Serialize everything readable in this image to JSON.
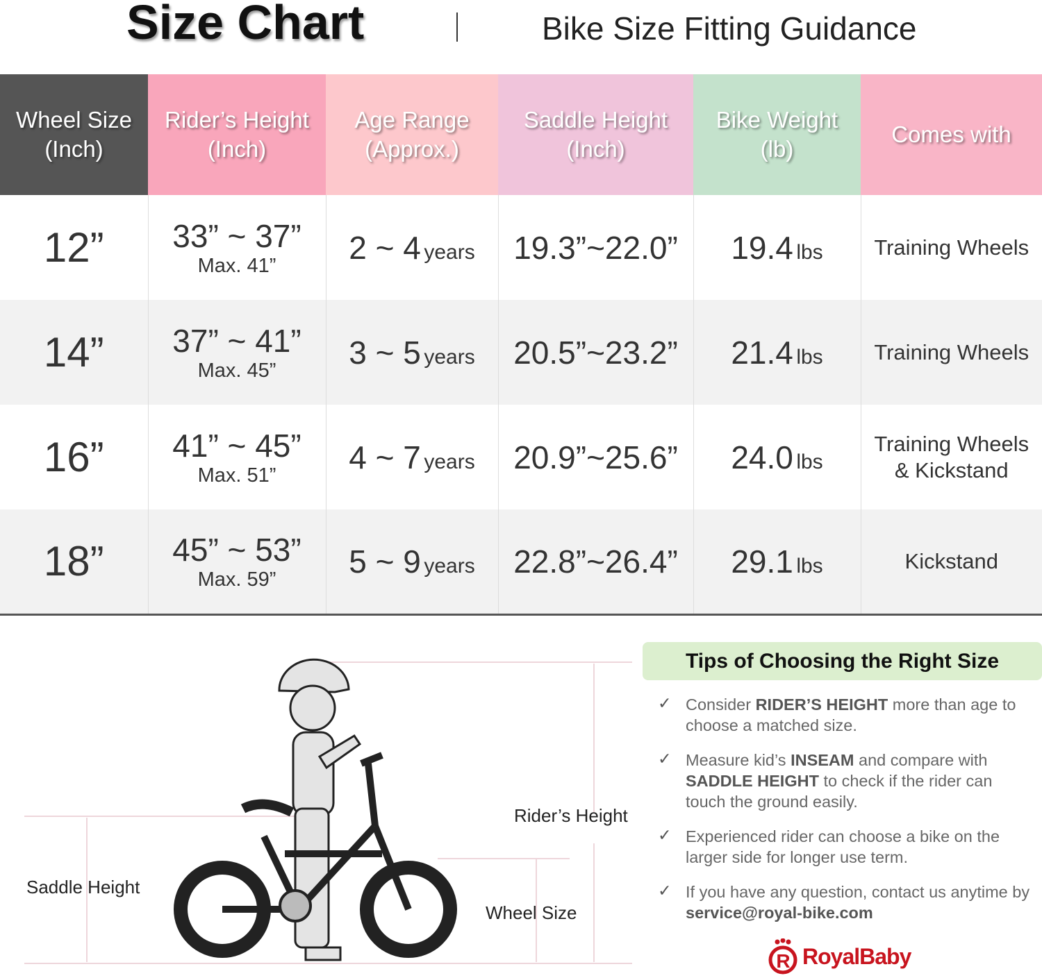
{
  "header": {
    "title": "Size Chart",
    "subtitle": "Bike Size Fitting Guidance"
  },
  "colors": {
    "wheel_header": "#555555",
    "rider_header": "#f9a6bb",
    "age_header": "#fdc8cc",
    "saddle_header": "#f0c4db",
    "weight_header": "#c4e2cc",
    "comes_header": "#f9b5c7",
    "brand": "#c8141e"
  },
  "table": {
    "columns": [
      {
        "line1": "Wheel Size",
        "line2": "(Inch)"
      },
      {
        "line1": "Rider’s Height",
        "line2": "(Inch)"
      },
      {
        "line1": "Age Range",
        "line2": "(Approx.)"
      },
      {
        "line1": "Saddle Height",
        "line2": "(Inch)"
      },
      {
        "line1": "Bike Weight",
        "line2": "(lb)"
      },
      {
        "line1": "Comes with",
        "line2": ""
      }
    ],
    "rows": [
      {
        "wheel": "12”",
        "height": "33” ~ 37”",
        "max": "Max. 41”",
        "age": "2 ~ 4",
        "age_unit": "years",
        "saddle": "19.3”~22.0”",
        "weight": "19.4",
        "weight_unit": "lbs",
        "comes1": "Training Wheels",
        "comes2": ""
      },
      {
        "wheel": "14”",
        "height": "37” ~ 41”",
        "max": "Max. 45”",
        "age": "3 ~ 5",
        "age_unit": "years",
        "saddle": "20.5”~23.2”",
        "weight": "21.4",
        "weight_unit": "lbs",
        "comes1": "Training Wheels",
        "comes2": ""
      },
      {
        "wheel": "16”",
        "height": "41” ~ 45”",
        "max": "Max. 51”",
        "age": "4 ~ 7",
        "age_unit": "years",
        "saddle": "20.9”~25.6”",
        "weight": "24.0",
        "weight_unit": "lbs",
        "comes1": "Training Wheels",
        "comes2": "& Kickstand"
      },
      {
        "wheel": "18”",
        "height": "45” ~ 53”",
        "max": "Max. 59”",
        "age": "5 ~ 9",
        "age_unit": "years",
        "saddle": "22.8”~26.4”",
        "weight": "29.1",
        "weight_unit": "lbs",
        "comes1": "Kickstand",
        "comes2": ""
      }
    ]
  },
  "diagram": {
    "rider_height": "Rider’s Height",
    "saddle_height": "Saddle Height",
    "wheel_size": "Wheel Size"
  },
  "tips": {
    "title": "Tips of Choosing the Right Size",
    "check": "✓",
    "items": [
      {
        "a": "Consider ",
        "b": "RIDER’S HEIGHT",
        "c": " more than age to choose a matched size.",
        "d": "",
        "e": ""
      },
      {
        "a": "Measure kid’s ",
        "b": "INSEAM",
        "c": " and compare with ",
        "d": "SADDLE HEIGHT",
        "e": " to check if the rider can touch the ground easily."
      },
      {
        "a": "Experienced rider can choose a bike on the larger side for longer use term.",
        "b": "",
        "c": "",
        "d": "",
        "e": ""
      },
      {
        "a": "If you have any question, contact us anytime by ",
        "b": "service@royal-bike.com",
        "c": "",
        "d": "",
        "e": ""
      }
    ]
  },
  "brand": {
    "name": "RoyalBaby"
  }
}
